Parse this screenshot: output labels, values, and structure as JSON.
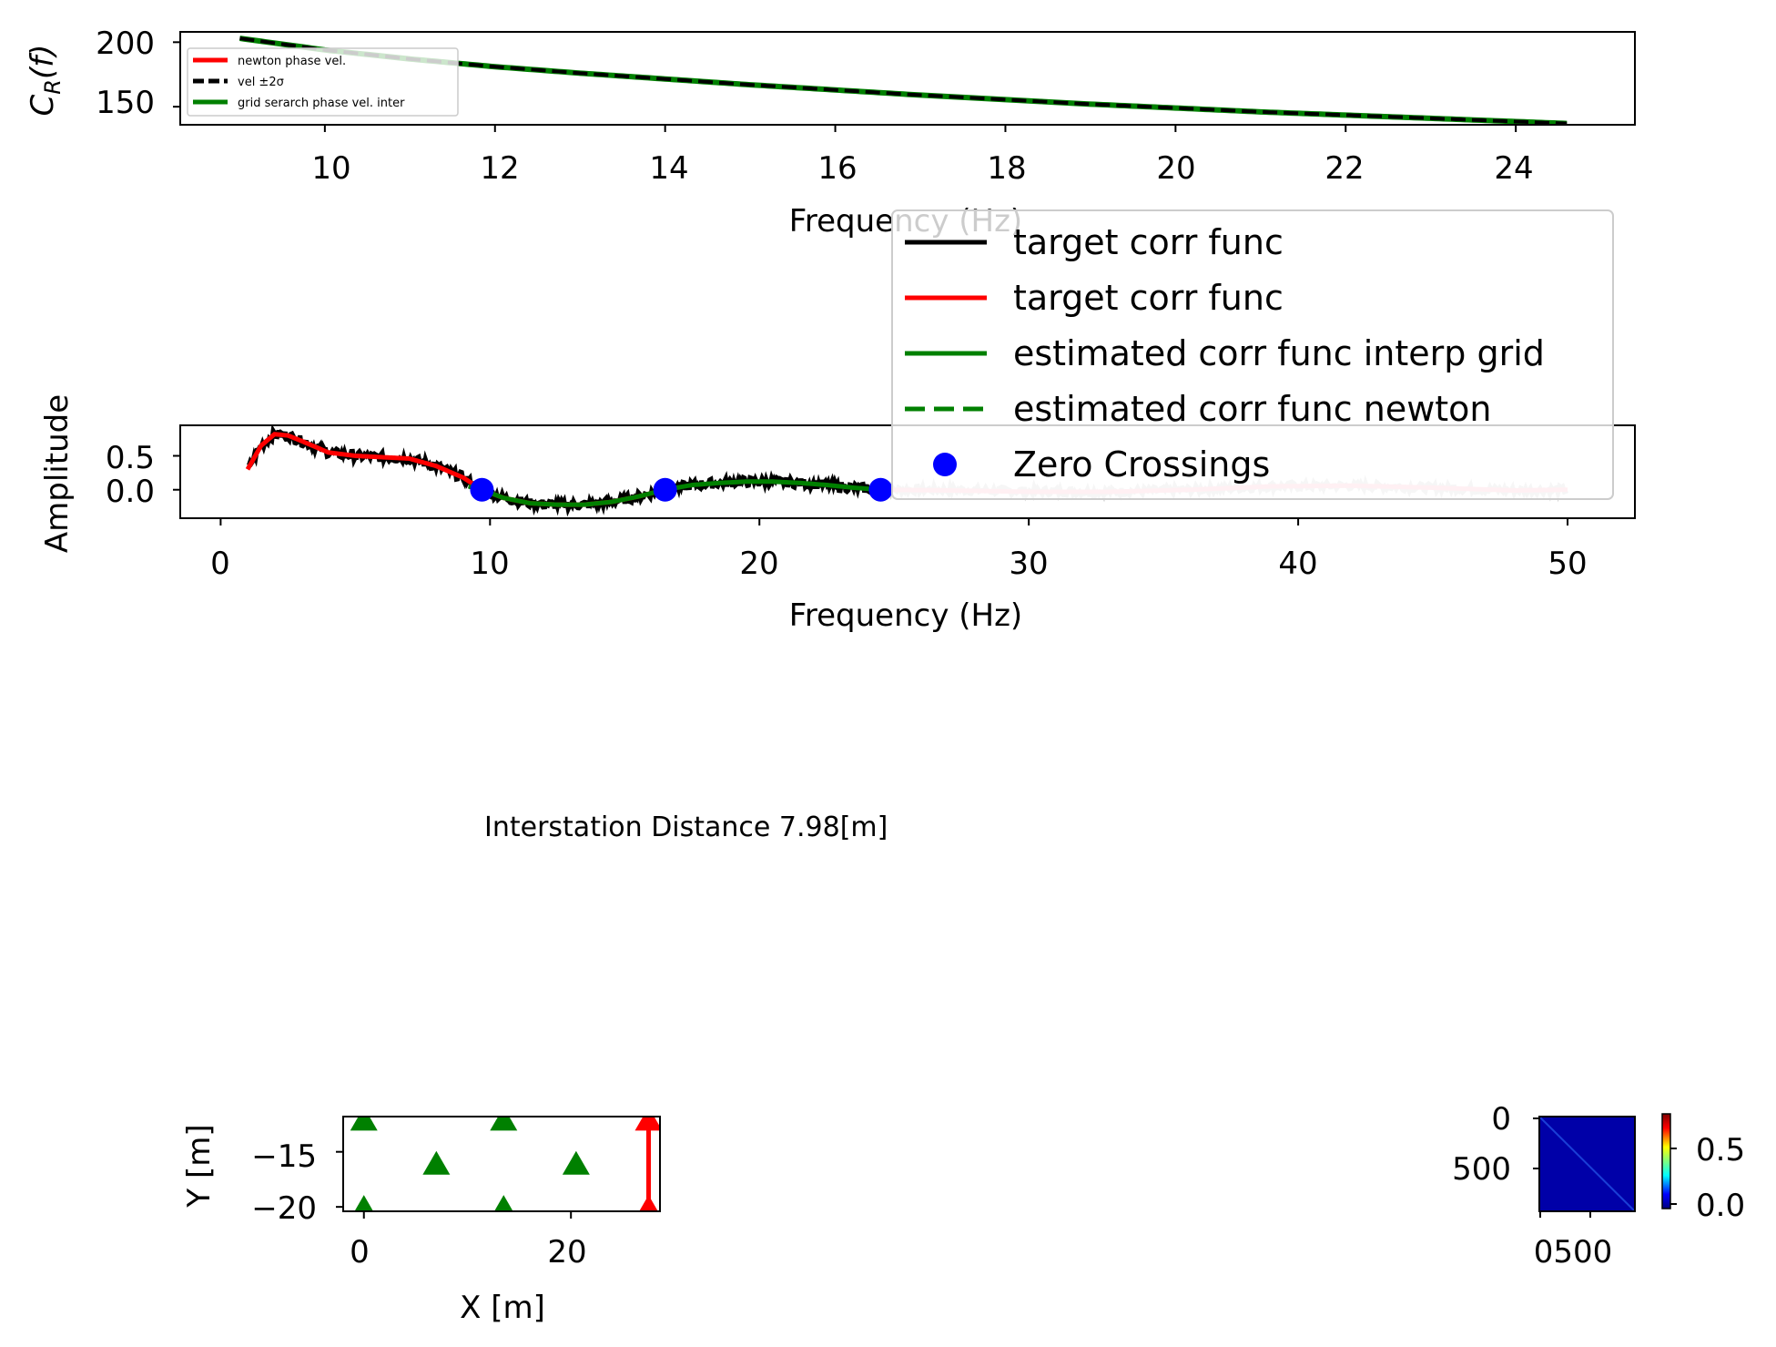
{
  "chart_data": [
    {
      "type": "line",
      "ylabel": "C_R(f)",
      "xlabel": "Frequency (Hz)",
      "xlim": [
        8.3,
        25.4
      ],
      "ylim": [
        136,
        208
      ],
      "xticks": [
        10,
        12,
        14,
        16,
        18,
        20,
        22,
        24
      ],
      "yticks": [
        150,
        200
      ],
      "legend": {
        "placement": "upper-left",
        "entries": [
          {
            "label": "newton phase vel.",
            "color": "#ff0000",
            "style": "solid"
          },
          {
            "label": "vel ±2σ",
            "color": "#000000",
            "style": "dashed"
          },
          {
            "label": "grid serarch phase vel. inter",
            "color": "#008000",
            "style": "solid"
          }
        ]
      },
      "series": [
        {
          "color": "#008000",
          "style": "solid",
          "x": [
            9.0,
            10,
            11,
            12,
            13,
            14,
            15,
            16,
            17,
            18,
            19,
            20,
            21,
            22,
            23,
            24,
            24.6
          ],
          "y": [
            203,
            194,
            187,
            181,
            176,
            171.5,
            167,
            163,
            159,
            155.5,
            152,
            149,
            146,
            143.5,
            141,
            138.5,
            137
          ]
        },
        {
          "color": "#000000",
          "style": "dashed",
          "x": [
            9.0,
            10,
            11,
            12,
            13,
            14,
            15,
            16,
            17,
            18,
            19,
            20,
            21,
            22,
            23,
            24,
            24.6
          ],
          "y": [
            203,
            194,
            187,
            181,
            176,
            171.5,
            167,
            163,
            159,
            155.5,
            152,
            149,
            146,
            143.5,
            141,
            138.5,
            137
          ]
        }
      ]
    },
    {
      "type": "line",
      "ylabel": "Amplitude",
      "xlabel": "Frequency (Hz)",
      "xlim": [
        -1.5,
        52.5
      ],
      "ylim": [
        -0.42,
        0.95
      ],
      "xticks": [
        0,
        10,
        20,
        30,
        40,
        50
      ],
      "yticks": [
        0.0,
        0.5
      ],
      "legend": {
        "placement": "upper-right",
        "entries": [
          {
            "label": "target corr func",
            "color": "#000000",
            "style": "solid"
          },
          {
            "label": "target corr func",
            "color": "#ff0000",
            "style": "solid"
          },
          {
            "label": "estimated corr func interp grid",
            "color": "#008000",
            "style": "solid"
          },
          {
            "label": "estimated corr func newton",
            "color": "#008000",
            "style": "dashed"
          },
          {
            "label": "Zero Crossings",
            "color": "#0000ff",
            "style": "marker"
          }
        ]
      },
      "series": [
        {
          "color": "#000000",
          "style": "noisy",
          "x": [
            1,
            1.5,
            2,
            2.5,
            3,
            4,
            5,
            6,
            7,
            8,
            9,
            9.7,
            10.5,
            11.5,
            12.5,
            13.5,
            14.5,
            15.5,
            16.5,
            17.5,
            18.5,
            19.5,
            20.5,
            21.5,
            22.5,
            23.5,
            24.5
          ],
          "y": [
            0.3,
            0.65,
            0.82,
            0.8,
            0.72,
            0.55,
            0.5,
            0.48,
            0.46,
            0.35,
            0.18,
            0.0,
            -0.12,
            -0.2,
            -0.22,
            -0.22,
            -0.18,
            -0.1,
            0.0,
            0.07,
            0.1,
            0.12,
            0.12,
            0.1,
            0.07,
            0.03,
            0.0
          ]
        },
        {
          "color": "#d3d3d3",
          "style": "noisy",
          "x": [
            24.5,
            27,
            30,
            33,
            36,
            39,
            42,
            45,
            48,
            50
          ],
          "y": [
            0.0,
            0.0,
            -0.02,
            -0.03,
            0.0,
            0.05,
            0.06,
            0.03,
            -0.01,
            0.0
          ]
        },
        {
          "color": "#ff0000",
          "style": "solid",
          "x": [
            1,
            1.5,
            2,
            2.5,
            3,
            4,
            5,
            6,
            7,
            8,
            9,
            9.7,
            10.5,
            11.5,
            12.5,
            13.5,
            14.5,
            15.5,
            16.5
          ],
          "y": [
            0.3,
            0.65,
            0.82,
            0.8,
            0.72,
            0.55,
            0.5,
            0.48,
            0.46,
            0.35,
            0.18,
            0.0,
            -0.12,
            -0.2,
            -0.22,
            -0.22,
            -0.18,
            -0.1,
            0.0
          ]
        },
        {
          "color": "#ffb6c1",
          "style": "solid",
          "x": [
            24.5,
            27,
            30,
            33,
            36,
            39,
            42,
            45,
            48,
            50
          ],
          "y": [
            0.0,
            -0.01,
            -0.03,
            -0.03,
            0.0,
            0.05,
            0.06,
            0.03,
            -0.01,
            0.0
          ]
        },
        {
          "color": "#008000",
          "style": "solid",
          "x": [
            9.2,
            9.7,
            10.5,
            11.5,
            12.5,
            13.5,
            14.5,
            15.5,
            16.5,
            17.5,
            18.5,
            19.5,
            20.5,
            21.5,
            22.5,
            23.5,
            24.5
          ],
          "y": [
            0.05,
            0.0,
            -0.12,
            -0.2,
            -0.22,
            -0.22,
            -0.18,
            -0.1,
            0.0,
            0.07,
            0.1,
            0.12,
            0.12,
            0.1,
            0.07,
            0.03,
            0.0
          ]
        }
      ],
      "zero_crossings": {
        "x": [
          9.7,
          16.5,
          24.5
        ],
        "y": [
          0.0,
          0.0,
          0.0
        ]
      }
    },
    {
      "type": "scatter",
      "xlabel": "X  [m]",
      "ylabel": "Y  [m]",
      "xlim": [
        -2,
        28.6
      ],
      "ylim": [
        -20.4,
        -11.8
      ],
      "xticks": [
        0,
        20
      ],
      "yticks": [
        -15,
        -20
      ],
      "stations": {
        "color": "#008000",
        "x": [
          0,
          13.5,
          7,
          20.5,
          0,
          13.5
        ],
        "y": [
          -12,
          -12,
          -16,
          -16,
          -20,
          -20
        ]
      },
      "pair": {
        "color": "#ff0000",
        "x": [
          27.5,
          27.5
        ],
        "y": [
          -12,
          -20
        ]
      }
    },
    {
      "type": "heatmap",
      "xticks": [
        0,
        500
      ],
      "yticks": [
        0,
        500
      ],
      "colorbar_ticks": [
        0.0,
        0.5
      ],
      "colormap": "jet"
    }
  ],
  "ticks": {
    "p1_x": [
      "10",
      "12",
      "14",
      "16",
      "18",
      "20",
      "22",
      "24"
    ],
    "p1_y": [
      "200",
      "150"
    ],
    "p2_x": [
      "0",
      "10",
      "20",
      "30",
      "40",
      "50"
    ],
    "p2_y": [
      "0.5",
      "0.0"
    ],
    "p3_x": [
      "0",
      "20"
    ],
    "p3_y": [
      "−15",
      "−20"
    ],
    "p4_y0": "0",
    "p4_y500": "500",
    "p4_x": "0500",
    "cb_05": "0.5",
    "cb_00": "0.0"
  },
  "labels": {
    "p1_ylabel_main": "C",
    "p1_ylabel_sub": "R",
    "p1_ylabel_rest": "(f)",
    "p1_xlabel": "Frequency (Hz)",
    "p2_ylabel": "Amplitude",
    "p2_xlabel": "Frequency (Hz)",
    "p3_xlabel": "X  [m]",
    "p3_ylabel": "Y  [m]"
  },
  "legend1": {
    "e1": "newton phase vel.",
    "e2": "vel ±2σ",
    "e3": "grid serarch phase vel. inter"
  },
  "legend2": {
    "e1": "target corr func",
    "e2": "target corr func",
    "e3": "estimated corr func interp grid",
    "e4": "estimated corr func newton",
    "e5": "Zero Crossings"
  },
  "annotation": "Interstation Distance 7.98[m]"
}
